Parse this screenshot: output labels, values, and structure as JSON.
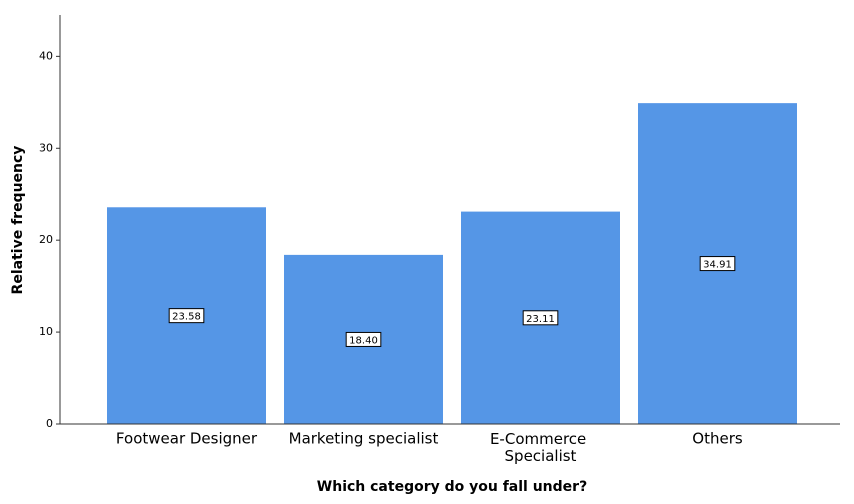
{
  "chart_data": {
    "type": "bar",
    "x_label": "Which category do you fall under?",
    "y_label": "Relative frequency",
    "categories": [
      "Footwear Designer",
      "Marketing specialist",
      "E-Commerce Specialist",
      "Others"
    ],
    "values": [
      23.58,
      18.4,
      23.11,
      34.91
    ],
    "value_labels": [
      "23.58",
      "18.40",
      "23.11",
      "34.91"
    ],
    "color": "#5596e6",
    "ylim": [
      0,
      44.5
    ],
    "yticks": [
      0,
      10,
      20,
      30,
      40
    ]
  }
}
